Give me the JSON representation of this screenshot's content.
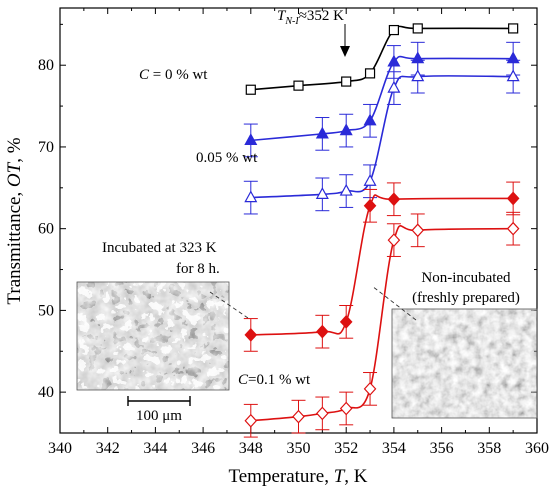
{
  "chart_data": {
    "type": "line",
    "xlabel_text": "Temperature, ",
    "xlabel_var": "T",
    "xlabel_unit": ", K",
    "ylabel_text": "Transmittance, ",
    "ylabel_var": "OT",
    "ylabel_unit": ", %",
    "xlim": [
      340,
      360
    ],
    "ylim": [
      35,
      87
    ],
    "x_ticks": [
      340,
      342,
      344,
      346,
      348,
      350,
      352,
      354,
      356,
      358,
      360
    ],
    "y_ticks": [
      40,
      50,
      60,
      70,
      80
    ],
    "grid": false,
    "series": [
      {
        "name": "C = 0 % wt",
        "color": "#000000",
        "marker": "square-open",
        "x": [
          348,
          350,
          352,
          353,
          354,
          355,
          359
        ],
        "y": [
          77.0,
          77.5,
          78.0,
          79.0,
          84.3,
          84.5,
          84.5
        ],
        "err": []
      },
      {
        "name": "0.05 % wt (filled)",
        "color": "#2a2ad8",
        "marker": "triangle-filled",
        "x": [
          348,
          351,
          352,
          353,
          354,
          355,
          359
        ],
        "y": [
          70.8,
          71.6,
          72.0,
          73.2,
          80.4,
          80.8,
          80.8
        ],
        "err": [
          2.0,
          2.0,
          2.0,
          2.0,
          2.0,
          2.0,
          2.0
        ]
      },
      {
        "name": "0.05 % wt (open)",
        "color": "#2a2ad8",
        "marker": "triangle-open",
        "x": [
          348,
          351,
          352,
          353,
          354,
          355,
          359
        ],
        "y": [
          63.8,
          64.2,
          64.6,
          65.8,
          77.2,
          78.6,
          78.6
        ],
        "err": [
          2.0,
          2.0,
          2.0,
          2.0,
          2.0,
          2.0,
          2.0
        ]
      },
      {
        "name": "C=0.1 % wt (filled)",
        "color": "#dd1111",
        "marker": "diamond-filled",
        "x": [
          348,
          351,
          352,
          353,
          354,
          359
        ],
        "y": [
          47.0,
          47.4,
          48.6,
          62.8,
          63.6,
          63.7
        ],
        "err": [
          2.0,
          2.0,
          2.0,
          2.0,
          2.0,
          2.0
        ]
      },
      {
        "name": "C=0.1 % wt (open)",
        "color": "#dd1111",
        "marker": "diamond-open",
        "x": [
          348,
          350,
          351,
          352,
          353,
          354,
          355,
          359
        ],
        "y": [
          36.5,
          37.0,
          37.4,
          38.0,
          40.4,
          58.6,
          59.8,
          60.0
        ],
        "err": [
          2.0,
          2.0,
          2.0,
          2.0,
          2.0,
          2.0,
          2.0,
          2.0
        ]
      }
    ]
  },
  "annotations": {
    "transition": "≈352 K",
    "transition_var": "T",
    "transition_sub": "N-I",
    "c0_prefix": "C",
    "c0_rest": " = 0 % wt",
    "c005": "0.05 % wt",
    "c01_prefix": "C",
    "c01_rest": "=0.1 % wt",
    "incubated_line1": "Incubated at 323 K",
    "incubated_line2": "for 8 h.",
    "nonincubated_line1": "Non-incubated",
    "nonincubated_line2": "(freshly prepared)",
    "scale_bar": "100 μm"
  }
}
